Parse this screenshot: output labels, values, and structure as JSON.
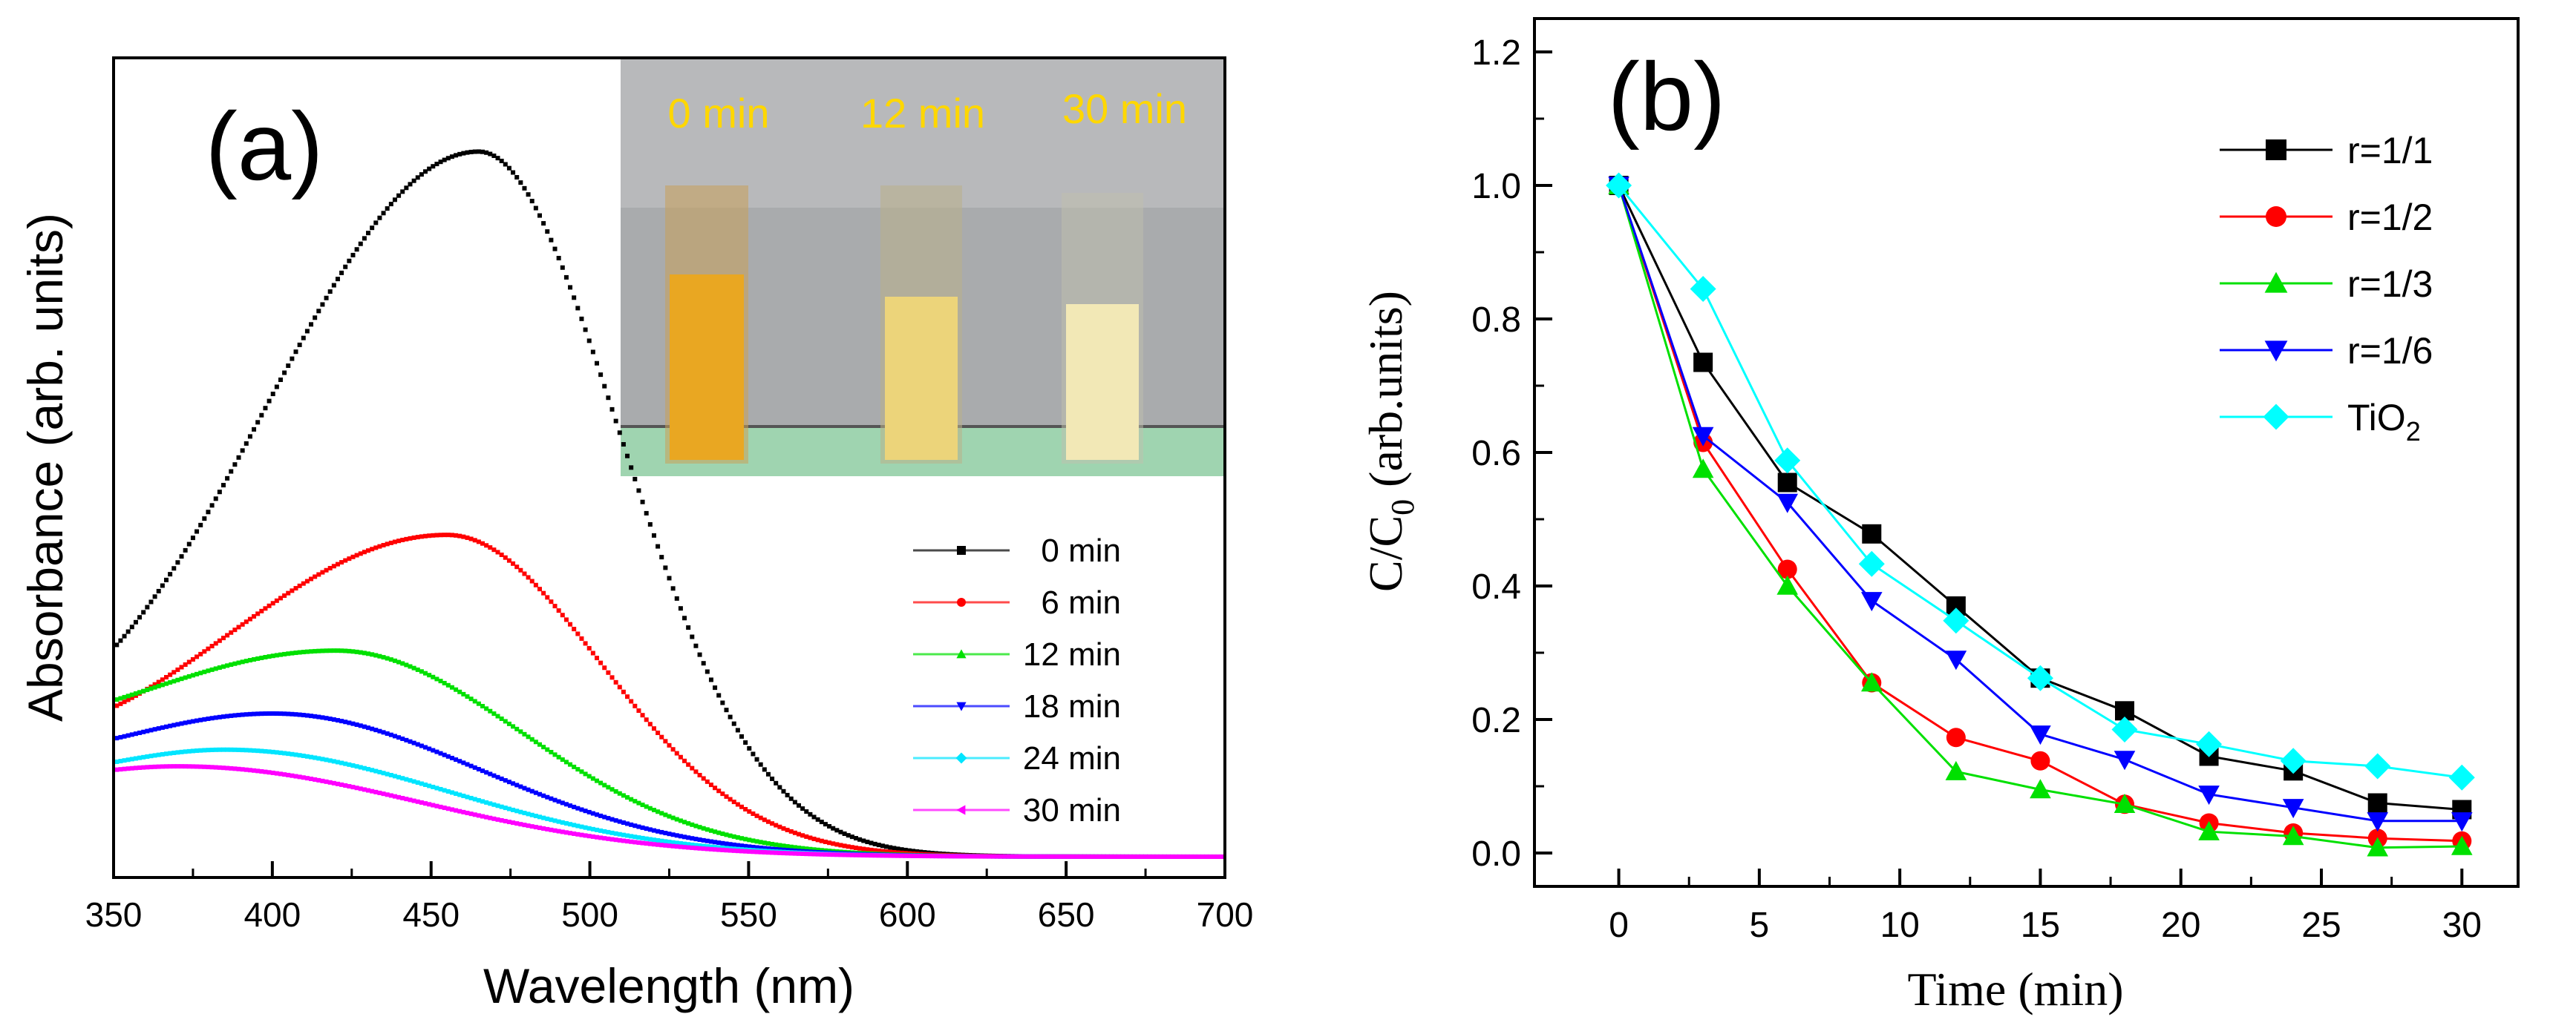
{
  "chart_data": [
    {
      "panel_label": "(a)",
      "type": "line",
      "xlabel": "Wavelength (nm)",
      "ylabel": "Absorbance (arb. units)",
      "xlim": [
        350,
        700
      ],
      "ylim": [
        0,
        1.0
      ],
      "x_ticks": [
        "350",
        "400",
        "450",
        "500",
        "550",
        "600",
        "650",
        "700"
      ],
      "y_ticks_shown": false,
      "legend_position": "middle-right",
      "inset": {
        "description": "photo of three cuvettes",
        "labels": [
          "0 min",
          "12 min",
          "30 min"
        ],
        "label_color": "#ffd700",
        "liquid_colors": [
          "#e9a722",
          "#ecd47a",
          "#f2e8b6"
        ]
      },
      "series": [
        {
          "name": "0 min",
          "color": "#000000",
          "marker": "square",
          "peak_nm": 465,
          "peak_abs": 0.975,
          "baseline_abs": 0.13,
          "start_abs": 0.19,
          "tail_abs": 0.0,
          "width_left": 70,
          "width_right": 44
        },
        {
          "name": "6 min",
          "color": "#ff0000",
          "marker": "circle",
          "peak_nm": 455,
          "peak_abs": 0.445,
          "baseline_abs": 0.15,
          "start_abs": 0.18,
          "tail_abs": 0.0,
          "width_left": 78,
          "width_right": 48
        },
        {
          "name": "12 min",
          "color": "#00e000",
          "marker": "triangle-up",
          "peak_nm": 420,
          "peak_abs": 0.285,
          "baseline_abs": 0.16,
          "start_abs": 0.18,
          "tail_abs": 0.0,
          "width_left": 85,
          "width_right": 58
        },
        {
          "name": "18 min",
          "color": "#0000ff",
          "marker": "triangle-down",
          "peak_nm": 400,
          "peak_abs": 0.198,
          "baseline_abs": 0.16,
          "start_abs": 0.17,
          "tail_abs": 0.0,
          "width_left": 70,
          "width_right": 65
        },
        {
          "name": "24 min",
          "color": "#00e5ff",
          "marker": "diamond",
          "peak_nm": 385,
          "peak_abs": 0.148,
          "baseline_abs": 0.14,
          "start_abs": 0.145,
          "tail_abs": 0.0,
          "width_left": 60,
          "width_right": 70
        },
        {
          "name": "30 min",
          "color": "#ff00ff",
          "marker": "triangle-left",
          "peak_nm": 370,
          "peak_abs": 0.125,
          "baseline_abs": 0.12,
          "start_abs": 0.124,
          "tail_abs": 0.0,
          "width_left": 60,
          "width_right": 75
        }
      ]
    },
    {
      "panel_label": "(b)",
      "type": "line",
      "xlabel": "Time (min)",
      "ylabel": "C/C",
      "ylabel_subscript": "0",
      "ylabel_suffix": " (arb.units)",
      "xlim": [
        -3,
        32
      ],
      "ylim": [
        -0.05,
        1.25
      ],
      "x_ticks": [
        0,
        5,
        10,
        15,
        20,
        25,
        30
      ],
      "y_ticks": [
        "0.0",
        "0.2",
        "0.4",
        "0.6",
        "0.8",
        "1.0",
        "1.2"
      ],
      "legend_position": "top-right",
      "x": [
        0,
        3,
        6,
        9,
        12,
        15,
        18,
        21,
        24,
        27,
        30
      ],
      "series": [
        {
          "name": "r=1/1",
          "color": "#000000",
          "marker": "square",
          "values": [
            1.0,
            0.735,
            0.555,
            0.478,
            0.37,
            0.262,
            0.213,
            0.145,
            0.123,
            0.075,
            0.065
          ]
        },
        {
          "name": "r=1/2",
          "color": "#ff0000",
          "marker": "circle",
          "values": [
            1.0,
            0.615,
            0.425,
            0.255,
            0.173,
            0.138,
            0.073,
            0.045,
            0.03,
            0.022,
            0.018
          ]
        },
        {
          "name": "r=1/3",
          "color": "#00e000",
          "marker": "triangle-up",
          "values": [
            1.0,
            0.575,
            0.4,
            0.255,
            0.122,
            0.095,
            0.073,
            0.032,
            0.025,
            0.008,
            0.01
          ]
        },
        {
          "name": "r=1/6",
          "color": "#0000ff",
          "marker": "triangle-down",
          "values": [
            1.0,
            0.625,
            0.525,
            0.378,
            0.29,
            0.178,
            0.14,
            0.088,
            0.068,
            0.048,
            0.048
          ]
        },
        {
          "name": "TiO",
          "name_subscript": "2",
          "color": "#00ffff",
          "marker": "diamond",
          "values": [
            1.0,
            0.845,
            0.588,
            0.433,
            0.348,
            0.262,
            0.185,
            0.163,
            0.138,
            0.13,
            0.113
          ]
        }
      ]
    }
  ]
}
